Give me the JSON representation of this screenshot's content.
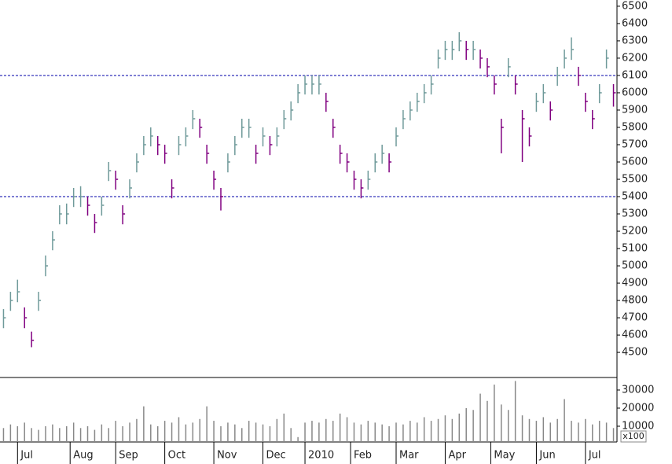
{
  "chart_data": {
    "type": "ohlc",
    "x": [
      0,
      1,
      2,
      3,
      4,
      5,
      6,
      7,
      8,
      9,
      10,
      11,
      12,
      13,
      14,
      15,
      16,
      17,
      18,
      19,
      20,
      21,
      22,
      23,
      24,
      25,
      26,
      27,
      28,
      29,
      30,
      31,
      32,
      33,
      34,
      35,
      36,
      37,
      38,
      39,
      40,
      41,
      42,
      43,
      44,
      45,
      46,
      47,
      48,
      49,
      50,
      51,
      52,
      53,
      54,
      55,
      56,
      57,
      58,
      59,
      60,
      61,
      62,
      63,
      64,
      65,
      66,
      67,
      68,
      69,
      70,
      71,
      72,
      73,
      74,
      75,
      76,
      77,
      78,
      79,
      80,
      81,
      82,
      83,
      84,
      85,
      86,
      87
    ],
    "high": [
      4750,
      4850,
      4920,
      4760,
      4620,
      4850,
      5060,
      5200,
      5350,
      5360,
      5450,
      5460,
      5400,
      5300,
      5400,
      5600,
      5550,
      5350,
      5500,
      5650,
      5750,
      5800,
      5750,
      5700,
      5500,
      5750,
      5800,
      5900,
      5850,
      5700,
      5550,
      5450,
      5650,
      5750,
      5850,
      5850,
      5700,
      5800,
      5750,
      5800,
      5900,
      5950,
      6050,
      6100,
      6100,
      6100,
      6000,
      5850,
      5700,
      5650,
      5550,
      5500,
      5550,
      5650,
      5700,
      5650,
      5800,
      5900,
      5950,
      6000,
      6050,
      6100,
      6250,
      6300,
      6300,
      6350,
      6300,
      6300,
      6250,
      6200,
      6100,
      5850,
      6200,
      6100,
      5900,
      5800,
      6000,
      6050,
      5950,
      6150,
      6250,
      6320,
      6150,
      6000,
      5900,
      6050,
      6250,
      6050
    ],
    "low": [
      4640,
      4740,
      4790,
      4640,
      4530,
      4740,
      4940,
      5090,
      5240,
      5240,
      5340,
      5340,
      5290,
      5190,
      5290,
      5490,
      5440,
      5240,
      5390,
      5540,
      5640,
      5690,
      5640,
      5590,
      5390,
      5640,
      5690,
      5790,
      5740,
      5590,
      5440,
      5320,
      5540,
      5640,
      5740,
      5740,
      5590,
      5690,
      5640,
      5690,
      5790,
      5840,
      5940,
      5990,
      5990,
      5990,
      5890,
      5740,
      5590,
      5540,
      5440,
      5390,
      5440,
      5540,
      5590,
      5540,
      5690,
      5790,
      5840,
      5890,
      5940,
      5990,
      6140,
      6190,
      6190,
      6240,
      6190,
      6190,
      6140,
      6090,
      5990,
      5650,
      6090,
      5990,
      5600,
      5690,
      5890,
      5940,
      5840,
      6040,
      6140,
      6190,
      6040,
      5890,
      5790,
      5940,
      6140,
      5920
    ],
    "close": [
      4700,
      4800,
      4850,
      4700,
      4570,
      4800,
      5000,
      5150,
      5300,
      5300,
      5400,
      5400,
      5350,
      5250,
      5350,
      5550,
      5500,
      5300,
      5450,
      5600,
      5700,
      5750,
      5700,
      5650,
      5450,
      5700,
      5750,
      5850,
      5800,
      5650,
      5500,
      5400,
      5600,
      5700,
      5800,
      5800,
      5650,
      5750,
      5700,
      5750,
      5850,
      5900,
      6000,
      6050,
      6050,
      6050,
      5950,
      5800,
      5650,
      5600,
      5500,
      5450,
      5500,
      5600,
      5650,
      5600,
      5750,
      5850,
      5900,
      5950,
      6000,
      6050,
      6200,
      6250,
      6250,
      6300,
      6250,
      6250,
      6200,
      6150,
      6050,
      5800,
      6150,
      6050,
      5850,
      5750,
      5950,
      6000,
      5900,
      6100,
      6200,
      6250,
      6100,
      5950,
      5850,
      6000,
      6200,
      6000
    ],
    "volume": [
      9000,
      11000,
      10000,
      12000,
      9000,
      8000,
      10000,
      11000,
      9000,
      10000,
      12000,
      9000,
      10000,
      8000,
      11000,
      9000,
      13000,
      10000,
      12000,
      14000,
      21000,
      11000,
      10000,
      13000,
      12000,
      15000,
      11000,
      12000,
      14000,
      21000,
      13000,
      10000,
      12000,
      11000,
      9000,
      13000,
      12000,
      11000,
      10000,
      14000,
      17000,
      9000,
      4000,
      12000,
      13000,
      12000,
      14000,
      13000,
      17000,
      15000,
      12000,
      11000,
      13000,
      12000,
      11000,
      10000,
      12000,
      11000,
      13000,
      12000,
      15000,
      13000,
      14000,
      16000,
      14000,
      17000,
      20000,
      19000,
      28000,
      24000,
      33000,
      22000,
      19000,
      35000,
      16000,
      14000,
      13000,
      15000,
      12000,
      14000,
      25000,
      13000,
      12000,
      14000,
      11000,
      13000,
      12000,
      9000
    ],
    "up_color": "#6f9a9a",
    "down_color": "#800080",
    "volume_color": "#888888",
    "hline_color": "#0000aa",
    "hlines": [
      6100,
      5400
    ],
    "xlim": [
      -0.5,
      87.5
    ],
    "xticks": [
      {
        "value": 2,
        "label": "Jul"
      },
      {
        "value": 9.5,
        "label": "Aug"
      },
      {
        "value": 16,
        "label": "Sep"
      },
      {
        "value": 23,
        "label": "Oct"
      },
      {
        "value": 30,
        "label": "Nov"
      },
      {
        "value": 37,
        "label": "Dec"
      },
      {
        "value": 43,
        "label": "2010"
      },
      {
        "value": 49.5,
        "label": "Feb"
      },
      {
        "value": 56,
        "label": "Mar"
      },
      {
        "value": 63,
        "label": "Apr"
      },
      {
        "value": 69.5,
        "label": "May"
      },
      {
        "value": 76,
        "label": "Jun"
      },
      {
        "value": 83,
        "label": "Jul"
      }
    ],
    "ylim": [
      4364,
      6536
    ],
    "yticks": [
      4500,
      4600,
      4700,
      4800,
      4900,
      5000,
      5100,
      5200,
      5300,
      5400,
      5500,
      5600,
      5700,
      5800,
      5900,
      6000,
      6100,
      6200,
      6300,
      6400,
      6500
    ],
    "volume_ylim": [
      1300,
      36500
    ],
    "volume_ticks": [
      10000,
      20000,
      30000
    ],
    "volume_unit": "x100"
  }
}
